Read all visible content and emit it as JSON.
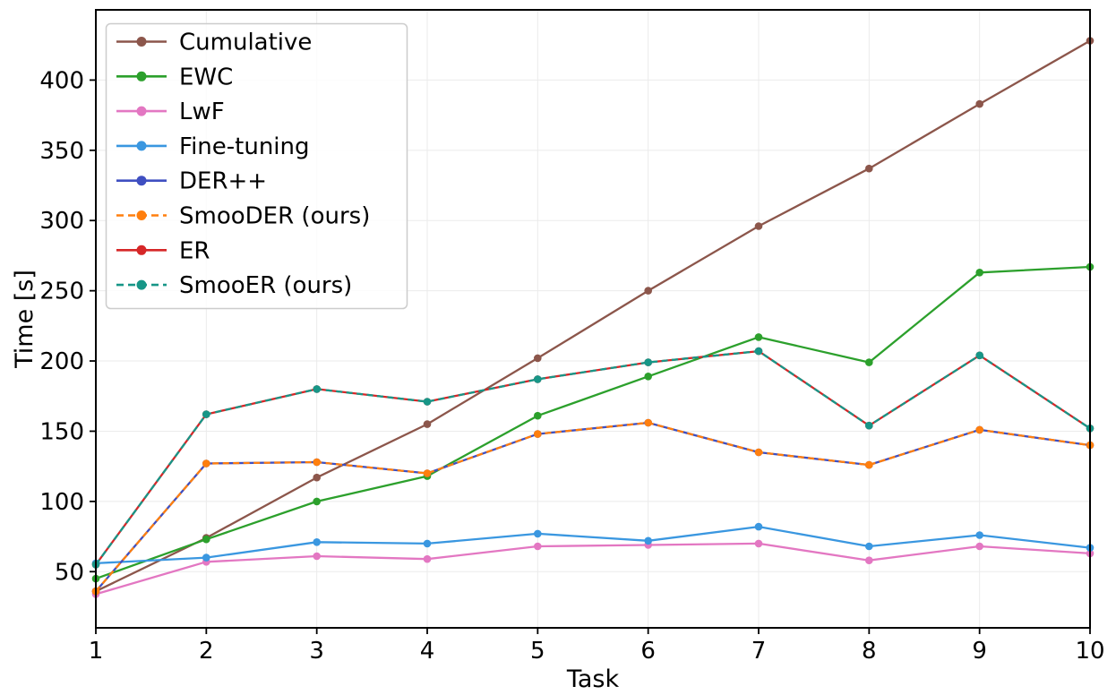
{
  "figure": {
    "background": "#ffffff"
  },
  "chart_data": {
    "type": "line",
    "title": "",
    "xlabel": "Task",
    "ylabel": "Time [s]",
    "x": [
      1,
      2,
      3,
      4,
      5,
      6,
      7,
      8,
      9,
      10
    ],
    "xticks": [
      "1",
      "2",
      "3",
      "4",
      "5",
      "6",
      "7",
      "8",
      "9",
      "10"
    ],
    "yticks": [
      50,
      100,
      150,
      200,
      250,
      300,
      350,
      400
    ],
    "xlim": [
      1,
      10
    ],
    "ylim": [
      10,
      450
    ],
    "grid": true,
    "grid_color": "#ebebeb",
    "spine_color": "#000000",
    "legend_position": "upper-left",
    "legend_border_color": "#cccccc",
    "series": [
      {
        "name": "Cumulative",
        "color": "#8c564b",
        "style": "solid",
        "marker": "circle",
        "values": [
          36,
          74,
          117,
          155,
          202,
          250,
          296,
          337,
          383,
          428
        ]
      },
      {
        "name": "EWC",
        "color": "#2ca02c",
        "style": "solid",
        "marker": "circle",
        "values": [
          45,
          73,
          100,
          118,
          161,
          189,
          217,
          199,
          263,
          267
        ]
      },
      {
        "name": "LwF",
        "color": "#e377c2",
        "style": "solid",
        "marker": "circle",
        "values": [
          34,
          57,
          61,
          59,
          68,
          69,
          70,
          58,
          68,
          63
        ]
      },
      {
        "name": "Fine-tuning",
        "color": "#3a97e0",
        "style": "solid",
        "marker": "circle",
        "values": [
          56,
          60,
          71,
          70,
          77,
          72,
          82,
          68,
          76,
          67
        ]
      },
      {
        "name": "DER++",
        "color": "#3f4fc1",
        "style": "solid",
        "marker": "circle",
        "values": [
          36,
          127,
          128,
          120,
          148,
          156,
          135,
          126,
          151,
          140
        ]
      },
      {
        "name": "SmooDER (ours)",
        "color": "#ff7f0e",
        "style": "dashed",
        "marker": "circle",
        "values": [
          36,
          127,
          128,
          120,
          148,
          156,
          135,
          126,
          151,
          140
        ]
      },
      {
        "name": "ER",
        "color": "#d62728",
        "style": "solid",
        "marker": "circle",
        "values": [
          55,
          162,
          180,
          171,
          187,
          199,
          207,
          154,
          204,
          152
        ]
      },
      {
        "name": "SmooER (ours)",
        "color": "#179687",
        "style": "dashed",
        "marker": "circle",
        "values": [
          55,
          162,
          180,
          171,
          187,
          199,
          207,
          154,
          204,
          152
        ]
      }
    ]
  }
}
